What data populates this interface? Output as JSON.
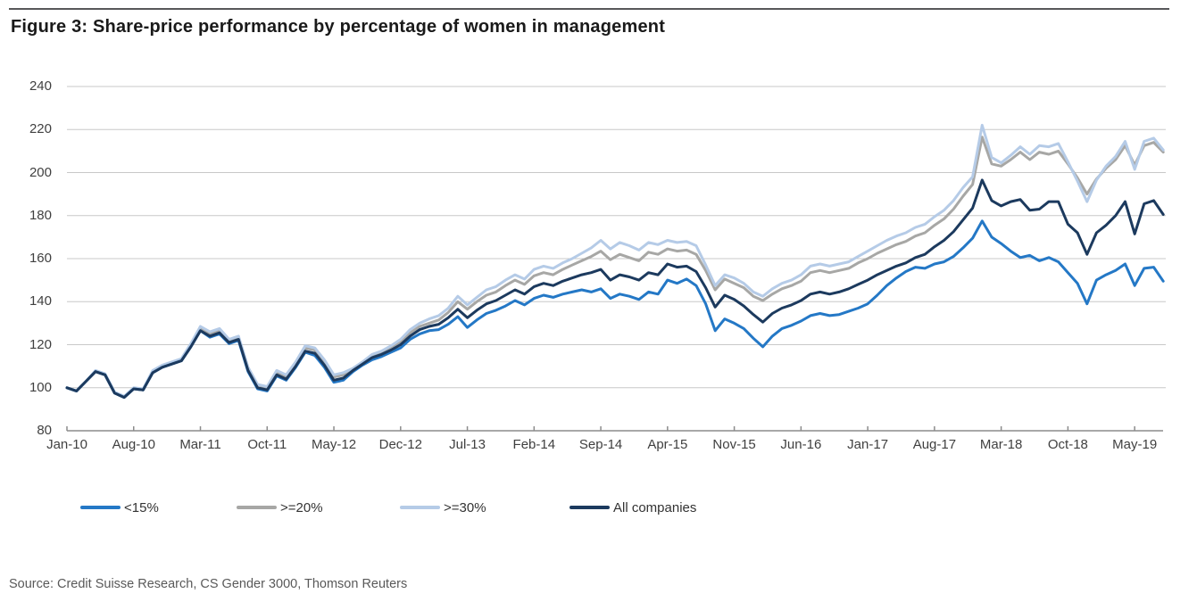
{
  "figure": {
    "title": "Figure 3: Share-price performance by percentage of women in management",
    "source": "Source: Credit Suisse Research, CS Gender 3000, Thomson Reuters"
  },
  "colors": {
    "gridline": "#c8c8c8",
    "axis": "#8c8c8c",
    "tick_text": "#404040",
    "title_text": "#1a1a1a",
    "top_rule": "#58585a"
  },
  "chart_data": {
    "type": "line",
    "title": "Figure 3: Share-price performance by percentage of women in management",
    "xlabel": "",
    "ylabel": "",
    "ylim": [
      80,
      240
    ],
    "y_ticks": [
      240,
      220,
      200,
      180,
      160,
      140,
      120,
      100,
      80
    ],
    "grid": "horizontal",
    "legend_position": "bottom",
    "x_frequency": "monthly",
    "points_per_tick": 7,
    "x_tick_labels": [
      "Jan-10",
      "Aug-10",
      "Mar-11",
      "Oct-11",
      "May-12",
      "Dec-12",
      "Jul-13",
      "Feb-14",
      "Sep-14",
      "Apr-15",
      "Nov-15",
      "Jun-16",
      "Jan-17",
      "Aug-17",
      "Mar-18",
      "Oct-18",
      "May-19"
    ],
    "series": [
      {
        "name": "<15%",
        "color": "#2478c6",
        "values": [
          100,
          98.5,
          103,
          107.5,
          106,
          97.5,
          95.5,
          99.5,
          99,
          107,
          109.5,
          111,
          112.5,
          119,
          126.5,
          123.5,
          125,
          120.5,
          122,
          107.5,
          99.5,
          98.5,
          105.5,
          103.5,
          109.5,
          116.5,
          115,
          109.5,
          102.5,
          103.5,
          107.5,
          110.5,
          113,
          114.5,
          116.5,
          118.5,
          122.5,
          125,
          126.5,
          127,
          129.5,
          133,
          128,
          131.5,
          134.5,
          136,
          138,
          140.5,
          138.5,
          141.5,
          143,
          142,
          143.5,
          144.5,
          145.5,
          144.5,
          146,
          141.5,
          143.5,
          142.5,
          141,
          144.5,
          143.5,
          150,
          148.5,
          150.5,
          147.5,
          139,
          126.5,
          132,
          130,
          127.5,
          123,
          119,
          124,
          127.5,
          129,
          131,
          133.5,
          134.5,
          133.5,
          134,
          135.5,
          137,
          139,
          143,
          147.5,
          151,
          154,
          156,
          155.5,
          157.5,
          158.5,
          161,
          165,
          169.5,
          177.5,
          170,
          167,
          163.5,
          160.5,
          161.5,
          159,
          160.5,
          158.5,
          153.5,
          148.5,
          139,
          150,
          152.5,
          154.5,
          157.5,
          147.5,
          155.5,
          156,
          149.5
        ]
      },
      {
        "name": ">=20%",
        "color": "#a7a7a5",
        "values": [
          100,
          98.5,
          103,
          107.5,
          106,
          97.5,
          95.5,
          99.5,
          99,
          107.5,
          110,
          111.5,
          113,
          119.5,
          127.5,
          125,
          126.5,
          122,
          123.5,
          108.5,
          100.5,
          99.5,
          107,
          105,
          111,
          118.5,
          117.5,
          112,
          105,
          106,
          108.5,
          111.5,
          114.5,
          116,
          118.5,
          121,
          125.5,
          128.5,
          130,
          131.5,
          135,
          140,
          136.5,
          140,
          143,
          144.5,
          147.5,
          150,
          148,
          152,
          153.5,
          152.5,
          155,
          157,
          159,
          161,
          163.5,
          159.5,
          162,
          160.5,
          159,
          163,
          162,
          164.5,
          163.5,
          164,
          162,
          154.5,
          145.5,
          150.5,
          148.5,
          146.5,
          142.5,
          140.5,
          143.5,
          146,
          147.5,
          149.5,
          153.5,
          154.5,
          153.5,
          154.5,
          155.5,
          158,
          160,
          162.5,
          164.5,
          166.5,
          168,
          170.5,
          172,
          175.5,
          178.5,
          183,
          189,
          194.5,
          216.5,
          204,
          203,
          206,
          209.5,
          206,
          209.5,
          208.5,
          210,
          204,
          197.5,
          190,
          197,
          202,
          206,
          212.5,
          203.5,
          212.5,
          214,
          209.5
        ]
      },
      {
        "name": ">=30%",
        "color": "#b5cbe7",
        "values": [
          100,
          98.5,
          103,
          108,
          106.5,
          98,
          96,
          100,
          99.5,
          108,
          110.5,
          112,
          113.5,
          120.5,
          128.5,
          126,
          127.5,
          122.5,
          124,
          109.5,
          101.5,
          100.5,
          108,
          106,
          112,
          119.5,
          118.5,
          113,
          106,
          107,
          109,
          112,
          115.5,
          117,
          119.5,
          122.5,
          127,
          130,
          132,
          133.5,
          137,
          142.5,
          138.5,
          142,
          145.5,
          147,
          150,
          152.5,
          150.5,
          155,
          156.5,
          155.5,
          158,
          160,
          162.5,
          165,
          168.5,
          164.5,
          167.5,
          166,
          164,
          167.5,
          166.5,
          168.5,
          167.5,
          168,
          166,
          157,
          147.5,
          152.5,
          151,
          148.5,
          144.5,
          142.5,
          146,
          148.5,
          150,
          152.5,
          156.5,
          157.5,
          156.5,
          157.5,
          158.5,
          161,
          163.5,
          166,
          168.5,
          170.5,
          172,
          174.5,
          176,
          179.5,
          182.5,
          187,
          193,
          198,
          222,
          207,
          204.5,
          208,
          212,
          208.5,
          212.5,
          212,
          213.5,
          205,
          196,
          186.5,
          196.5,
          203,
          207.5,
          214.5,
          201.5,
          214.5,
          216,
          210.5
        ]
      },
      {
        "name": "All companies",
        "color": "#1c3a5e",
        "values": [
          100,
          98.5,
          103,
          107.5,
          106,
          97.5,
          95.5,
          99.5,
          99,
          107,
          109.5,
          111,
          112.5,
          119,
          126.5,
          124,
          125.5,
          121,
          122.5,
          108,
          100,
          99,
          106,
          104,
          110,
          117,
          116,
          110.5,
          103.5,
          104.5,
          108,
          111,
          114,
          115.5,
          117.5,
          120,
          124,
          127,
          128.5,
          129.5,
          132.5,
          136.5,
          132.5,
          136,
          139,
          140.5,
          143,
          145.5,
          143.5,
          147,
          148.5,
          147.5,
          149.5,
          151,
          152.5,
          153.5,
          155,
          150,
          152.5,
          151.5,
          150,
          153.5,
          152.5,
          157.5,
          156,
          156.5,
          154,
          146.5,
          137.5,
          143,
          141,
          138,
          134,
          130.5,
          134.5,
          137,
          138.5,
          140.5,
          143.5,
          144.5,
          143.5,
          144.5,
          146,
          148,
          150,
          152.5,
          154.5,
          156.5,
          158,
          160.5,
          162,
          165.5,
          168.5,
          172.5,
          178,
          183.5,
          196.5,
          187,
          184.5,
          186.5,
          187.5,
          182.5,
          183,
          186.5,
          186.5,
          176,
          172,
          162,
          172,
          175.5,
          180,
          186.5,
          171.5,
          185.5,
          187,
          180.5
        ]
      }
    ]
  }
}
